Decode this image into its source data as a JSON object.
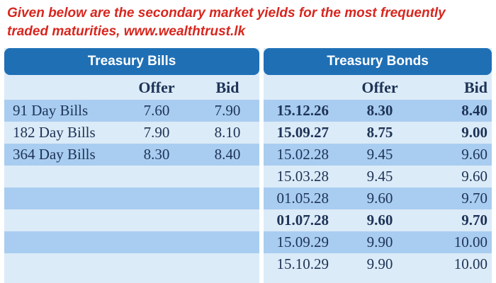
{
  "caption": {
    "line1": "Given below are the secondary market yields for the most frequently",
    "line2": "traded maturities, www.wealthtrust.lk"
  },
  "colors": {
    "caption": "#d7261e",
    "header_bg": "#1f6fb5",
    "row_light": "#dcebf8",
    "row_dark": "#a9cdf0",
    "text": "#1d3356"
  },
  "bills": {
    "title": "Treasury Bills",
    "col_offer": "Offer",
    "col_bid": "Bid",
    "rows": [
      {
        "label": "91 Day Bills",
        "offer": "7.60",
        "bid": "7.90"
      },
      {
        "label": "182 Day Bills",
        "offer": "7.90",
        "bid": "8.10"
      },
      {
        "label": "364 Day Bills",
        "offer": "8.30",
        "bid": "8.40"
      }
    ]
  },
  "bonds": {
    "title": "Treasury Bonds",
    "col_offer": "Offer",
    "col_bid": "Bid",
    "rows": [
      {
        "date": "15.12.26",
        "offer": "8.30",
        "bid": "8.40",
        "bold": true
      },
      {
        "date": "15.09.27",
        "offer": "8.75",
        "bid": "9.00",
        "bold": true
      },
      {
        "date": "15.02.28",
        "offer": "9.45",
        "bid": "9.60",
        "bold": false
      },
      {
        "date": "15.03.28",
        "offer": "9.45",
        "bid": "9.60",
        "bold": false
      },
      {
        "date": "01.05.28",
        "offer": "9.60",
        "bid": "9.70",
        "bold": false
      },
      {
        "date": "01.07.28",
        "offer": "9.60",
        "bid": "9.70",
        "bold": true
      },
      {
        "date": "15.09.29",
        "offer": "9.90",
        "bid": "10.00",
        "bold": false
      },
      {
        "date": "15.10.29",
        "offer": "9.90",
        "bid": "10.00",
        "bold": false
      }
    ]
  }
}
